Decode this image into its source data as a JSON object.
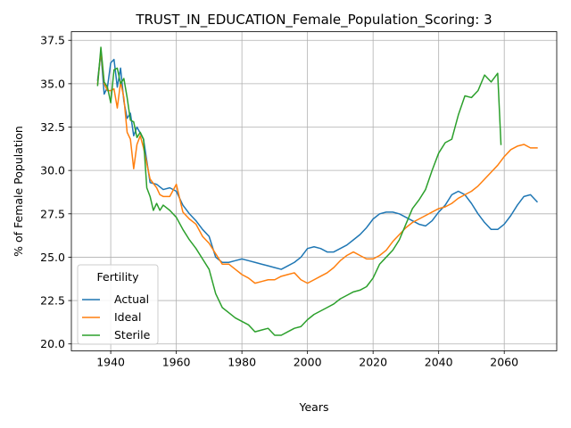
{
  "chart_data": {
    "type": "line",
    "title": "TRUST_IN_EDUCATION_Female_Population_Scoring: 3",
    "xlabel": "Years",
    "ylabel": "% of Female Population",
    "xlim": [
      1928,
      2076
    ],
    "ylim": [
      19.6,
      38.0
    ],
    "xticks": [
      1940,
      1960,
      1980,
      2000,
      2020,
      2040,
      2060
    ],
    "yticks": [
      20.0,
      22.5,
      25.0,
      27.5,
      30.0,
      32.5,
      35.0,
      37.5
    ],
    "ytick_labels": [
      "20.0",
      "22.5",
      "25.0",
      "27.5",
      "30.0",
      "32.5",
      "35.0",
      "37.5"
    ],
    "grid": true,
    "legend": {
      "title": "Fertility",
      "placement": "lower-left"
    },
    "series": [
      {
        "name": "Actual",
        "color": "#1f77b4",
        "x": [
          1936,
          1937,
          1938,
          1939,
          1940,
          1941,
          1942,
          1943,
          1944,
          1945,
          1946,
          1947,
          1948,
          1950,
          1952,
          1954,
          1956,
          1958,
          1960,
          1962,
          1964,
          1966,
          1968,
          1970,
          1972,
          1974,
          1976,
          1978,
          1980,
          1982,
          1984,
          1986,
          1988,
          1990,
          1992,
          1994,
          1996,
          1998,
          2000,
          2002,
          2004,
          2006,
          2008,
          2010,
          2012,
          2014,
          2016,
          2018,
          2020,
          2022,
          2024,
          2026,
          2028,
          2030,
          2032,
          2034,
          2036,
          2038,
          2040,
          2042,
          2044,
          2046,
          2048,
          2050,
          2052,
          2054,
          2056,
          2058,
          2060,
          2062,
          2064,
          2066,
          2068,
          2070
        ],
        "values": [
          35.2,
          36.8,
          34.4,
          34.8,
          36.2,
          36.4,
          34.8,
          35.9,
          34.0,
          33.0,
          33.3,
          32.0,
          32.5,
          31.8,
          29.3,
          29.2,
          28.9,
          29.0,
          28.8,
          28.0,
          27.5,
          27.1,
          26.6,
          26.2,
          25.0,
          24.7,
          24.7,
          24.8,
          24.9,
          24.8,
          24.7,
          24.6,
          24.5,
          24.4,
          24.3,
          24.5,
          24.7,
          25.0,
          25.5,
          25.6,
          25.5,
          25.3,
          25.3,
          25.5,
          25.7,
          26.0,
          26.3,
          26.7,
          27.2,
          27.5,
          27.6,
          27.6,
          27.5,
          27.3,
          27.1,
          26.9,
          26.8,
          27.1,
          27.6,
          28.0,
          28.6,
          28.8,
          28.6,
          28.1,
          27.5,
          27.0,
          26.6,
          26.6,
          26.9,
          27.4,
          28.0,
          28.5,
          28.6,
          28.2
        ]
      },
      {
        "name": "Ideal",
        "color": "#ff7f0e",
        "x": [
          1936,
          1937,
          1938,
          1939,
          1940,
          1941,
          1942,
          1943,
          1944,
          1945,
          1946,
          1947,
          1948,
          1949,
          1950,
          1952,
          1954,
          1955,
          1956,
          1958,
          1960,
          1962,
          1964,
          1966,
          1968,
          1970,
          1972,
          1974,
          1976,
          1978,
          1980,
          1982,
          1984,
          1986,
          1988,
          1990,
          1992,
          1994,
          1996,
          1998,
          2000,
          2002,
          2004,
          2006,
          2008,
          2010,
          2012,
          2014,
          2016,
          2018,
          2020,
          2022,
          2024,
          2026,
          2028,
          2030,
          2032,
          2034,
          2036,
          2038,
          2040,
          2042,
          2044,
          2046,
          2048,
          2050,
          2052,
          2054,
          2056,
          2058,
          2060,
          2062,
          2064,
          2066,
          2068,
          2070
        ],
        "values": [
          35.0,
          36.9,
          35.0,
          34.6,
          34.6,
          34.7,
          33.6,
          35.1,
          34.2,
          32.2,
          31.8,
          30.1,
          31.5,
          32.0,
          31.3,
          29.5,
          29.0,
          28.6,
          28.5,
          28.5,
          29.2,
          27.6,
          27.2,
          26.9,
          26.2,
          25.8,
          25.2,
          24.6,
          24.6,
          24.3,
          24.0,
          23.8,
          23.5,
          23.6,
          23.7,
          23.7,
          23.9,
          24.0,
          24.1,
          23.7,
          23.5,
          23.7,
          23.9,
          24.1,
          24.4,
          24.8,
          25.1,
          25.3,
          25.1,
          24.9,
          24.9,
          25.1,
          25.4,
          25.9,
          26.3,
          26.7,
          27.0,
          27.2,
          27.4,
          27.6,
          27.8,
          27.9,
          28.1,
          28.4,
          28.6,
          28.8,
          29.1,
          29.5,
          29.9,
          30.3,
          30.8,
          31.2,
          31.4,
          31.5,
          31.3,
          31.3
        ]
      },
      {
        "name": "Sterile",
        "color": "#2ca02c",
        "x": [
          1936,
          1937,
          1938,
          1939,
          1940,
          1941,
          1942,
          1943,
          1944,
          1945,
          1946,
          1947,
          1948,
          1949,
          1950,
          1951,
          1952,
          1953,
          1954,
          1955,
          1956,
          1958,
          1960,
          1962,
          1964,
          1966,
          1968,
          1970,
          1972,
          1974,
          1976,
          1978,
          1980,
          1982,
          1984,
          1986,
          1988,
          1990,
          1992,
          1994,
          1996,
          1998,
          2000,
          2002,
          2004,
          2006,
          2008,
          2010,
          2012,
          2014,
          2016,
          2018,
          2020,
          2022,
          2024,
          2026,
          2028,
          2030,
          2032,
          2034,
          2036,
          2038,
          2040,
          2042,
          2044,
          2046,
          2048,
          2050,
          2052,
          2054,
          2056,
          2058,
          2059
        ],
        "values": [
          34.9,
          37.1,
          35.1,
          34.8,
          33.9,
          35.8,
          35.9,
          35.0,
          35.3,
          34.2,
          32.9,
          32.8,
          31.9,
          32.2,
          31.8,
          29.0,
          28.5,
          27.7,
          28.1,
          27.7,
          28.0,
          27.7,
          27.3,
          26.6,
          26.0,
          25.5,
          24.9,
          24.3,
          22.9,
          22.1,
          21.8,
          21.5,
          21.3,
          21.1,
          20.7,
          20.8,
          20.9,
          20.5,
          20.5,
          20.7,
          20.9,
          21.0,
          21.4,
          21.7,
          21.9,
          22.1,
          22.3,
          22.6,
          22.8,
          23.0,
          23.1,
          23.3,
          23.8,
          24.6,
          25.0,
          25.4,
          26.0,
          26.9,
          27.8,
          28.3,
          28.9,
          30.0,
          31.0,
          31.6,
          31.8,
          33.2,
          34.3,
          34.2,
          34.6,
          35.5,
          35.1,
          35.6,
          31.5
        ]
      }
    ]
  }
}
